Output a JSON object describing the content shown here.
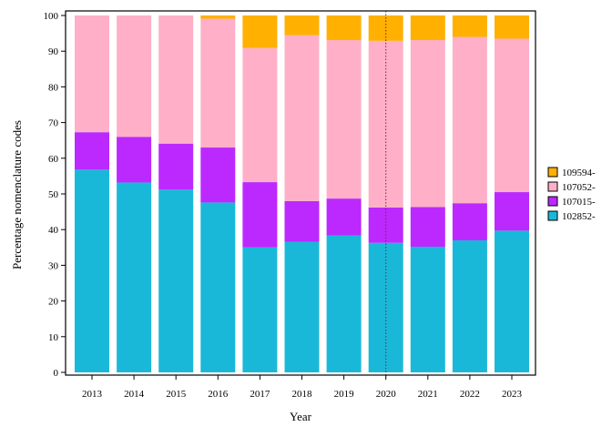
{
  "chart_data": {
    "type": "bar",
    "stacked": true,
    "title": "",
    "xlabel": "Year",
    "ylabel": "Percentage nomenclature codes",
    "ylim": [
      0,
      100
    ],
    "yticks": [
      0,
      10,
      20,
      30,
      40,
      50,
      60,
      70,
      80,
      90,
      100
    ],
    "grid": false,
    "legend_position": "right",
    "reference_line": {
      "x": "2020",
      "style": "dotted",
      "color": "#8b1a3a"
    },
    "categories": [
      "2013",
      "2014",
      "2015",
      "2016",
      "2017",
      "2018",
      "2019",
      "2020",
      "2021",
      "2022",
      "2023"
    ],
    "series": [
      {
        "name": "102852-",
        "color": "#1ab8d8",
        "values": [
          56.8,
          53.2,
          51.2,
          47.6,
          35.0,
          36.6,
          38.4,
          36.3,
          35.2,
          37.0,
          39.7
        ]
      },
      {
        "name": "107015-",
        "color": "#bb29ff",
        "values": [
          10.5,
          12.8,
          12.9,
          15.4,
          18.3,
          11.4,
          10.3,
          9.9,
          11.1,
          10.4,
          10.8
        ]
      },
      {
        "name": "107052-",
        "color": "#ffb0c8",
        "values": [
          32.7,
          34.0,
          35.9,
          36.1,
          37.6,
          46.5,
          44.4,
          46.7,
          46.8,
          46.6,
          43.0
        ]
      },
      {
        "name": "109594-",
        "color": "#ffb000",
        "values": [
          0.0,
          0.0,
          0.0,
          0.9,
          9.1,
          5.5,
          6.9,
          7.1,
          6.9,
          6.0,
          6.5
        ]
      }
    ]
  }
}
